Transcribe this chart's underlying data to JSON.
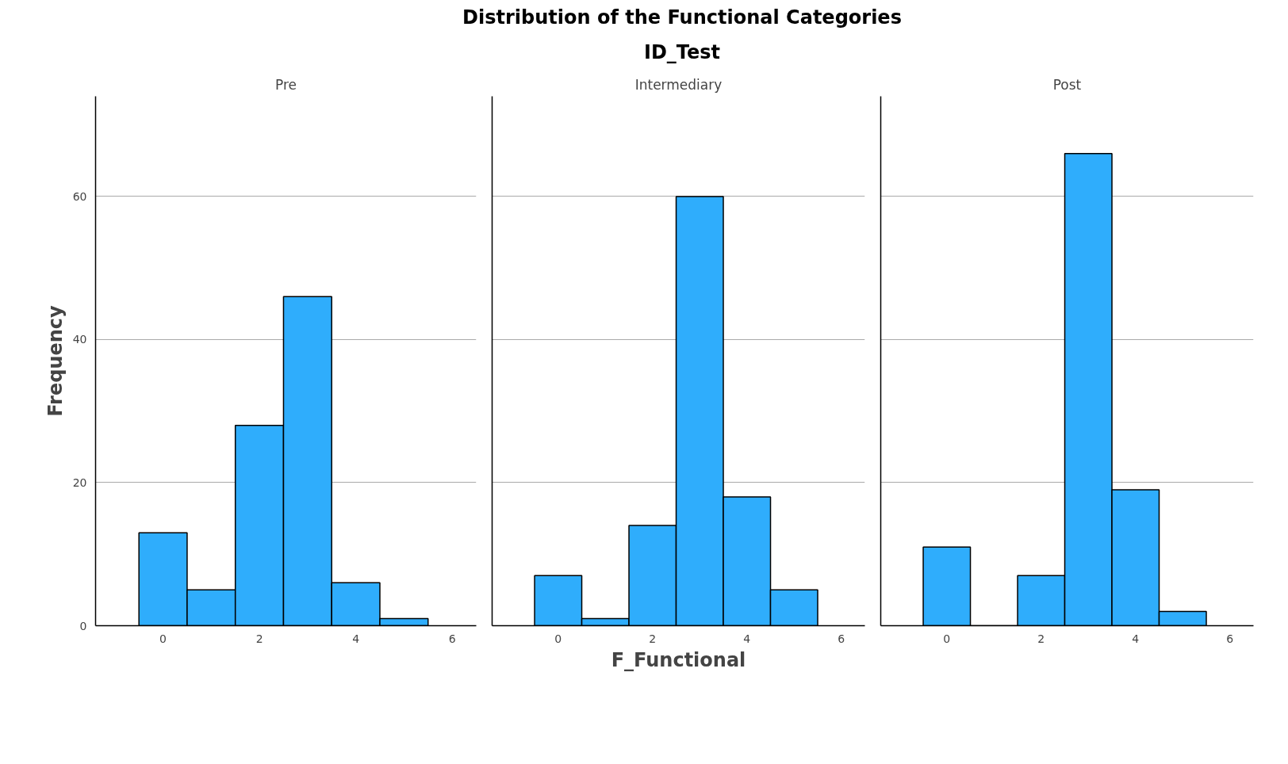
{
  "chart_data": [
    {
      "type": "histogram",
      "title": "Pre",
      "annotations": [
        "Distribution of the Functional Categories",
        "ID_Test"
      ],
      "ylabel": "Frequency",
      "bins": [
        -0.5,
        0.5,
        1.5,
        2.5,
        3.5,
        4.5,
        5.5
      ],
      "values": [
        13,
        5,
        28,
        46,
        6,
        1
      ],
      "color": "#2fadfc",
      "xlim": [
        -1.4,
        6.5
      ],
      "ylim": [
        0,
        74
      ],
      "xticks": [
        0,
        2,
        4,
        6
      ],
      "yticks": [
        0,
        20,
        40,
        60
      ],
      "grid": "y"
    },
    {
      "type": "histogram",
      "title": "Intermediary",
      "xlabel": "F_Functional",
      "bins": [
        -0.5,
        0.5,
        1.5,
        2.5,
        3.5,
        4.5,
        5.5
      ],
      "values": [
        7,
        1,
        14,
        60,
        18,
        5
      ],
      "color": "#2fadfc",
      "xlim": [
        -1.4,
        6.5
      ],
      "ylim": [
        0,
        74
      ],
      "xticks": [
        0,
        2,
        4,
        6
      ],
      "yticks": [
        0,
        20,
        40,
        60
      ],
      "grid": "y",
      "tick_labels": "x"
    },
    {
      "type": "histogram",
      "title": "Post",
      "bins": [
        -0.5,
        0.5,
        1.5,
        2.5,
        3.5,
        4.5,
        5.5
      ],
      "values": [
        11,
        0,
        7,
        66,
        19,
        2
      ],
      "color": "#2fadfc",
      "xlim": [
        -1.4,
        6.5
      ],
      "ylim": [
        0,
        74
      ],
      "xticks": [
        0,
        2,
        4,
        6
      ],
      "yticks": [
        0,
        20,
        40,
        60
      ],
      "grid": "y",
      "tick_labels": "x"
    }
  ]
}
